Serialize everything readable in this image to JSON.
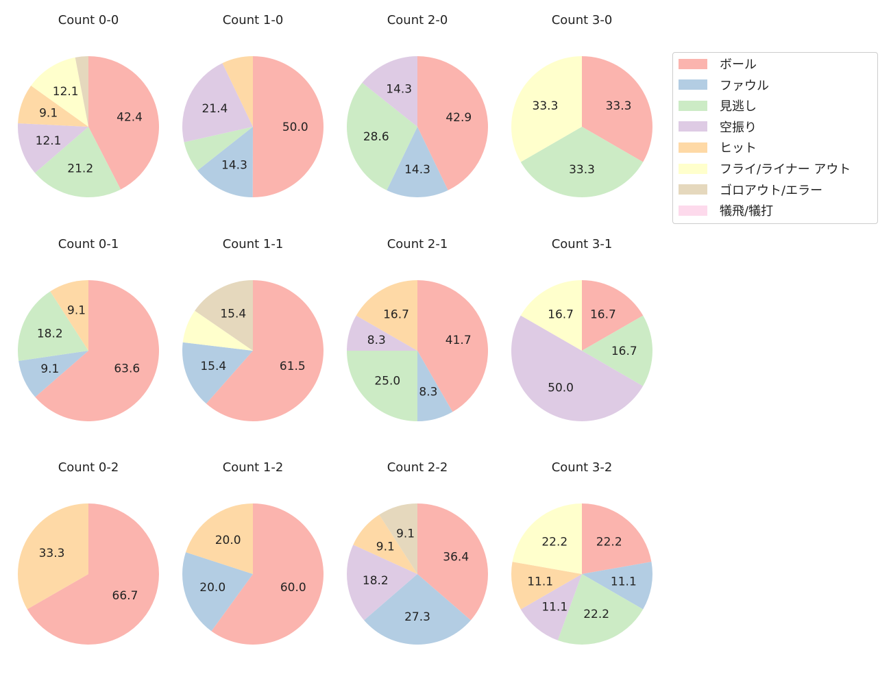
{
  "chart_data": {
    "type": "pie",
    "legend_position": "right",
    "categories": [
      "ボール",
      "ファウル",
      "見逃し",
      "空振り",
      "ヒット",
      "フライ/ライナー アウト",
      "ゴロアウト/エラー",
      "犠飛/犠打"
    ],
    "colors": [
      "#fbb4ae",
      "#b3cde3",
      "#ccebc5",
      "#decbe4",
      "#fed9a6",
      "#ffffcc",
      "#e5d8bd",
      "#fddaec"
    ],
    "charts": [
      {
        "title": "Count 0-0",
        "values": [
          42.4,
          0,
          21.2,
          12.1,
          9.1,
          12.1,
          3.0,
          0
        ]
      },
      {
        "title": "Count 1-0",
        "values": [
          50.0,
          14.3,
          7.1,
          21.4,
          7.1,
          0,
          0,
          0
        ]
      },
      {
        "title": "Count 2-0",
        "values": [
          42.9,
          14.3,
          28.6,
          14.3,
          0,
          0,
          0,
          0
        ]
      },
      {
        "title": "Count 3-0",
        "values": [
          33.3,
          0,
          33.3,
          0,
          0,
          33.3,
          0,
          0
        ]
      },
      {
        "title": "Count 0-1",
        "values": [
          63.6,
          9.1,
          18.2,
          0,
          9.1,
          0,
          0,
          0
        ]
      },
      {
        "title": "Count 1-1",
        "values": [
          61.5,
          15.4,
          0,
          0,
          0,
          7.7,
          15.4,
          0
        ]
      },
      {
        "title": "Count 2-1",
        "values": [
          41.7,
          8.3,
          25.0,
          8.3,
          16.7,
          0,
          0,
          0
        ]
      },
      {
        "title": "Count 3-1",
        "values": [
          16.7,
          0,
          16.7,
          50.0,
          0,
          16.7,
          0,
          0
        ]
      },
      {
        "title": "Count 0-2",
        "values": [
          66.7,
          0,
          0,
          0,
          33.3,
          0,
          0,
          0
        ]
      },
      {
        "title": "Count 1-2",
        "values": [
          60.0,
          20.0,
          0,
          0,
          20.0,
          0,
          0,
          0
        ]
      },
      {
        "title": "Count 2-2",
        "values": [
          36.4,
          27.3,
          0,
          18.2,
          9.1,
          0,
          9.1,
          0
        ]
      },
      {
        "title": "Count 3-2",
        "values": [
          22.2,
          11.1,
          22.2,
          11.1,
          11.1,
          22.2,
          0,
          0
        ]
      }
    ]
  }
}
